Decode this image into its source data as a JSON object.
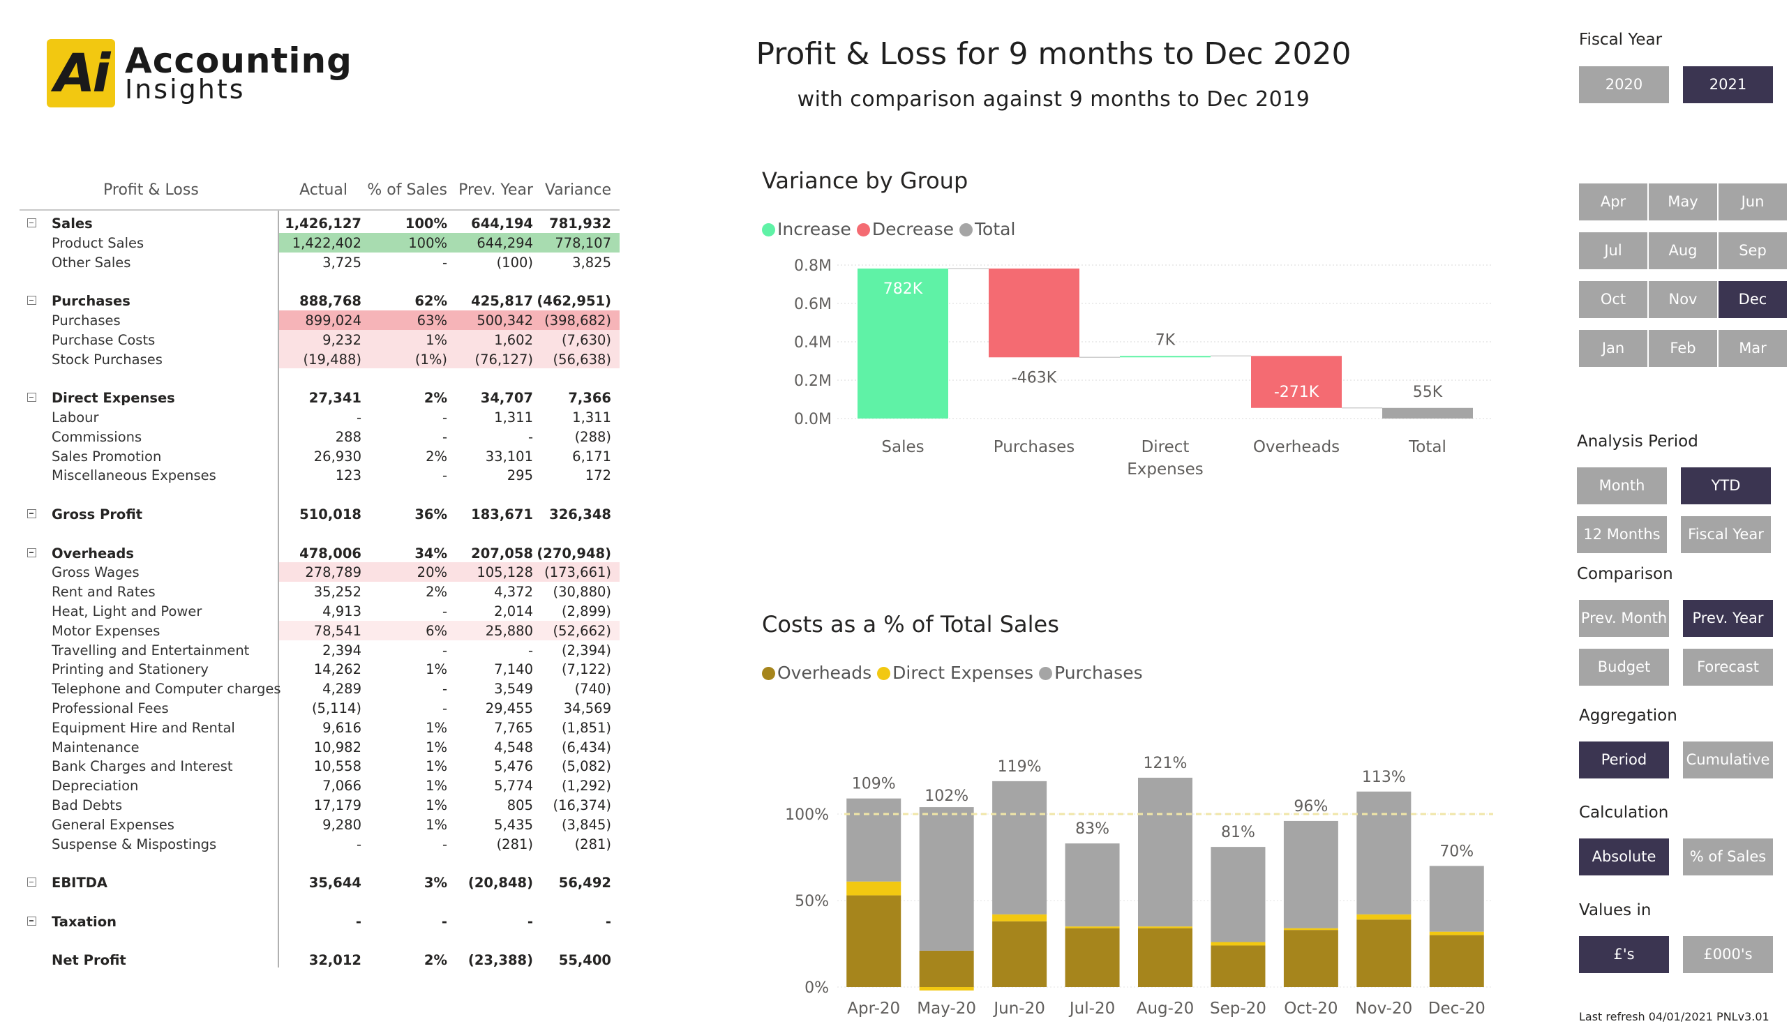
{
  "logo": {
    "mark": "Ai",
    "line1": "Accounting",
    "line2": "Insights"
  },
  "title": "Profit & Loss for 9 months to Dec 2020",
  "subtitle": "with comparison against 9 months to Dec 2019",
  "table": {
    "headers": [
      "Profit & Loss",
      "Actual",
      "% of Sales",
      "Prev. Year",
      "Variance"
    ],
    "sections": [
      {
        "name": "Sales",
        "total": [
          "1,426,127",
          "100%",
          "644,194",
          "781,932"
        ],
        "rows": [
          {
            "label": "Product Sales",
            "vals": [
              "1,422,402",
              "100%",
              "644,294",
              "778,107"
            ],
            "hl": "green"
          },
          {
            "label": "Other Sales",
            "vals": [
              "3,725",
              "-",
              "(100)",
              "3,825"
            ]
          }
        ]
      },
      {
        "name": "Purchases",
        "total": [
          "888,768",
          "62%",
          "425,817",
          "(462,951)"
        ],
        "rows": [
          {
            "label": "Purchases",
            "vals": [
              "899,024",
              "63%",
              "500,342",
              "(398,682)"
            ],
            "hl": "red"
          },
          {
            "label": "Purchase Costs",
            "vals": [
              "9,232",
              "1%",
              "1,602",
              "(7,630)"
            ],
            "hl": "pink"
          },
          {
            "label": "Stock Purchases",
            "vals": [
              "(19,488)",
              "(1%)",
              "(76,127)",
              "(56,638)"
            ],
            "hl": "pink"
          }
        ]
      },
      {
        "name": "Direct Expenses",
        "total": [
          "27,341",
          "2%",
          "34,707",
          "7,366"
        ],
        "rows": [
          {
            "label": "Labour",
            "vals": [
              "-",
              "-",
              "1,311",
              "1,311"
            ]
          },
          {
            "label": "Commissions",
            "vals": [
              "288",
              "-",
              "-",
              "(288)"
            ]
          },
          {
            "label": "Sales Promotion",
            "vals": [
              "26,930",
              "2%",
              "33,101",
              "6,171"
            ]
          },
          {
            "label": "Miscellaneous Expenses",
            "vals": [
              "123",
              "-",
              "295",
              "172"
            ]
          }
        ]
      },
      {
        "name": "Gross Profit",
        "total": [
          "510,018",
          "36%",
          "183,671",
          "326,348"
        ],
        "rows": []
      },
      {
        "name": "Overheads",
        "total": [
          "478,006",
          "34%",
          "207,058",
          "(270,948)"
        ],
        "rows": [
          {
            "label": "Gross Wages",
            "vals": [
              "278,789",
              "20%",
              "105,128",
              "(173,661)"
            ],
            "hl": "pink"
          },
          {
            "label": "Rent and Rates",
            "vals": [
              "35,252",
              "2%",
              "4,372",
              "(30,880)"
            ]
          },
          {
            "label": "Heat, Light and Power",
            "vals": [
              "4,913",
              "-",
              "2,014",
              "(2,899)"
            ]
          },
          {
            "label": "Motor Expenses",
            "vals": [
              "78,541",
              "6%",
              "25,880",
              "(52,662)"
            ],
            "hl": "lpink"
          },
          {
            "label": "Travelling and Entertainment",
            "vals": [
              "2,394",
              "-",
              "-",
              "(2,394)"
            ]
          },
          {
            "label": "Printing and Stationery",
            "vals": [
              "14,262",
              "1%",
              "7,140",
              "(7,122)"
            ]
          },
          {
            "label": "Telephone and Computer charges",
            "vals": [
              "4,289",
              "-",
              "3,549",
              "(740)"
            ]
          },
          {
            "label": "Professional Fees",
            "vals": [
              "(5,114)",
              "-",
              "29,455",
              "34,569"
            ]
          },
          {
            "label": "Equipment Hire and Rental",
            "vals": [
              "9,616",
              "1%",
              "7,765",
              "(1,851)"
            ]
          },
          {
            "label": "Maintenance",
            "vals": [
              "10,982",
              "1%",
              "4,548",
              "(6,434)"
            ]
          },
          {
            "label": "Bank Charges and Interest",
            "vals": [
              "10,558",
              "1%",
              "5,476",
              "(5,082)"
            ]
          },
          {
            "label": "Depreciation",
            "vals": [
              "7,066",
              "1%",
              "5,774",
              "(1,292)"
            ]
          },
          {
            "label": "Bad Debts",
            "vals": [
              "17,179",
              "1%",
              "805",
              "(16,374)"
            ]
          },
          {
            "label": "General Expenses",
            "vals": [
              "9,280",
              "1%",
              "5,435",
              "(3,845)"
            ]
          },
          {
            "label": "Suspense & Mispostings",
            "vals": [
              "-",
              "-",
              "(281)",
              "(281)"
            ]
          }
        ]
      },
      {
        "name": "EBITDA",
        "total": [
          "35,644",
          "3%",
          "(20,848)",
          "56,492"
        ],
        "rows": []
      },
      {
        "name": "Taxation",
        "total": [
          "-",
          "-",
          "-",
          "-"
        ],
        "rows": []
      },
      {
        "name": "Net Profit",
        "total": [
          "32,012",
          "2%",
          "(23,388)",
          "55,400"
        ],
        "rows": [],
        "noToggle": true
      }
    ]
  },
  "waterfall": {
    "title": "Variance by Group",
    "legend": [
      {
        "name": "Increase",
        "color": "#5ff2a6"
      },
      {
        "name": "Decrease",
        "color": "#f46b72"
      },
      {
        "name": "Total",
        "color": "#a5a5a5"
      }
    ]
  },
  "stacked": {
    "title": "Costs as a % of Total Sales",
    "legend": [
      {
        "name": "Overheads",
        "color": "#a6851c"
      },
      {
        "name": "Direct Expenses",
        "color": "#f2c811"
      },
      {
        "name": "Purchases",
        "color": "#a5a5a5"
      }
    ]
  },
  "chart_data": [
    {
      "type": "bar",
      "subtype": "waterfall",
      "title": "Variance by Group",
      "categories": [
        "Sales",
        "Purchases",
        "Direct Expenses",
        "Overheads",
        "Total"
      ],
      "values": [
        781932,
        -462951,
        7366,
        -270948,
        55400
      ],
      "data_labels": [
        "782K",
        "-463K",
        "7K",
        "-271K",
        "55K"
      ],
      "kinds": [
        "Increase",
        "Decrease",
        "Increase",
        "Decrease",
        "Total"
      ],
      "yticks": [
        "0.0M",
        "0.2M",
        "0.4M",
        "0.6M",
        "0.8M"
      ],
      "ylim": [
        0,
        800000
      ],
      "legend": "top-left",
      "grid": true
    },
    {
      "type": "bar",
      "subtype": "stacked",
      "title": "Costs as a % of Total Sales",
      "categories": [
        "Apr-20",
        "May-20",
        "Jun-20",
        "Jul-20",
        "Aug-20",
        "Sep-20",
        "Oct-20",
        "Nov-20",
        "Dec-20"
      ],
      "series": [
        {
          "name": "Overheads",
          "values": [
            53,
            21,
            38,
            34,
            34,
            24,
            33,
            39,
            30
          ]
        },
        {
          "name": "Direct Expenses",
          "values": [
            8,
            -2,
            4,
            1,
            1,
            2,
            1,
            3,
            2
          ]
        },
        {
          "name": "Purchases",
          "values": [
            48,
            83,
            77,
            48,
            86,
            55,
            62,
            71,
            38
          ]
        }
      ],
      "totals_labels": [
        "109%",
        "102%",
        "119%",
        "83%",
        "121%",
        "81%",
        "96%",
        "113%",
        "70%"
      ],
      "totals": [
        109,
        102,
        119,
        83,
        121,
        81,
        96,
        113,
        70
      ],
      "reference_line": 100,
      "yticks": [
        "0%",
        "50%",
        "100%"
      ],
      "ylim": [
        0,
        125
      ],
      "legend": "top-left",
      "grid": true
    }
  ],
  "slicers": {
    "fiscal_year": {
      "title": "Fiscal Year",
      "options": [
        {
          "label": "2020",
          "sel": false
        },
        {
          "label": "2021",
          "sel": true
        }
      ]
    },
    "months": [
      {
        "label": "Apr",
        "sel": false
      },
      {
        "label": "May",
        "sel": false
      },
      {
        "label": "Jun",
        "sel": false
      },
      {
        "label": "Jul",
        "sel": false
      },
      {
        "label": "Aug",
        "sel": false
      },
      {
        "label": "Sep",
        "sel": false
      },
      {
        "label": "Oct",
        "sel": false
      },
      {
        "label": "Nov",
        "sel": false
      },
      {
        "label": "Dec",
        "sel": true
      },
      {
        "label": "Jan",
        "sel": false
      },
      {
        "label": "Feb",
        "sel": false
      },
      {
        "label": "Mar",
        "sel": false
      }
    ],
    "analysis_period": {
      "title": "Analysis Period",
      "options": [
        {
          "label": "Month",
          "sel": false
        },
        {
          "label": "YTD",
          "sel": true
        },
        {
          "label": "12 Months",
          "sel": false
        },
        {
          "label": "Fiscal Year",
          "sel": false
        }
      ]
    },
    "comparison": {
      "title": "Comparison",
      "options": [
        {
          "label": "Prev. Month",
          "sel": false
        },
        {
          "label": "Prev. Year",
          "sel": true
        },
        {
          "label": "Budget",
          "sel": false
        },
        {
          "label": "Forecast",
          "sel": false
        }
      ]
    },
    "aggregation": {
      "title": "Aggregation",
      "options": [
        {
          "label": "Period",
          "sel": true
        },
        {
          "label": "Cumulative",
          "sel": false
        }
      ]
    },
    "calculation": {
      "title": "Calculation",
      "options": [
        {
          "label": "Absolute",
          "sel": true
        },
        {
          "label": "% of Sales",
          "sel": false
        }
      ]
    },
    "values_in": {
      "title": "Values in",
      "options": [
        {
          "label": "£'s",
          "sel": true
        },
        {
          "label": "£000's",
          "sel": false
        }
      ]
    }
  },
  "footer": {
    "refresh": "Last refresh 04/01/2021 PNLv3.01"
  }
}
